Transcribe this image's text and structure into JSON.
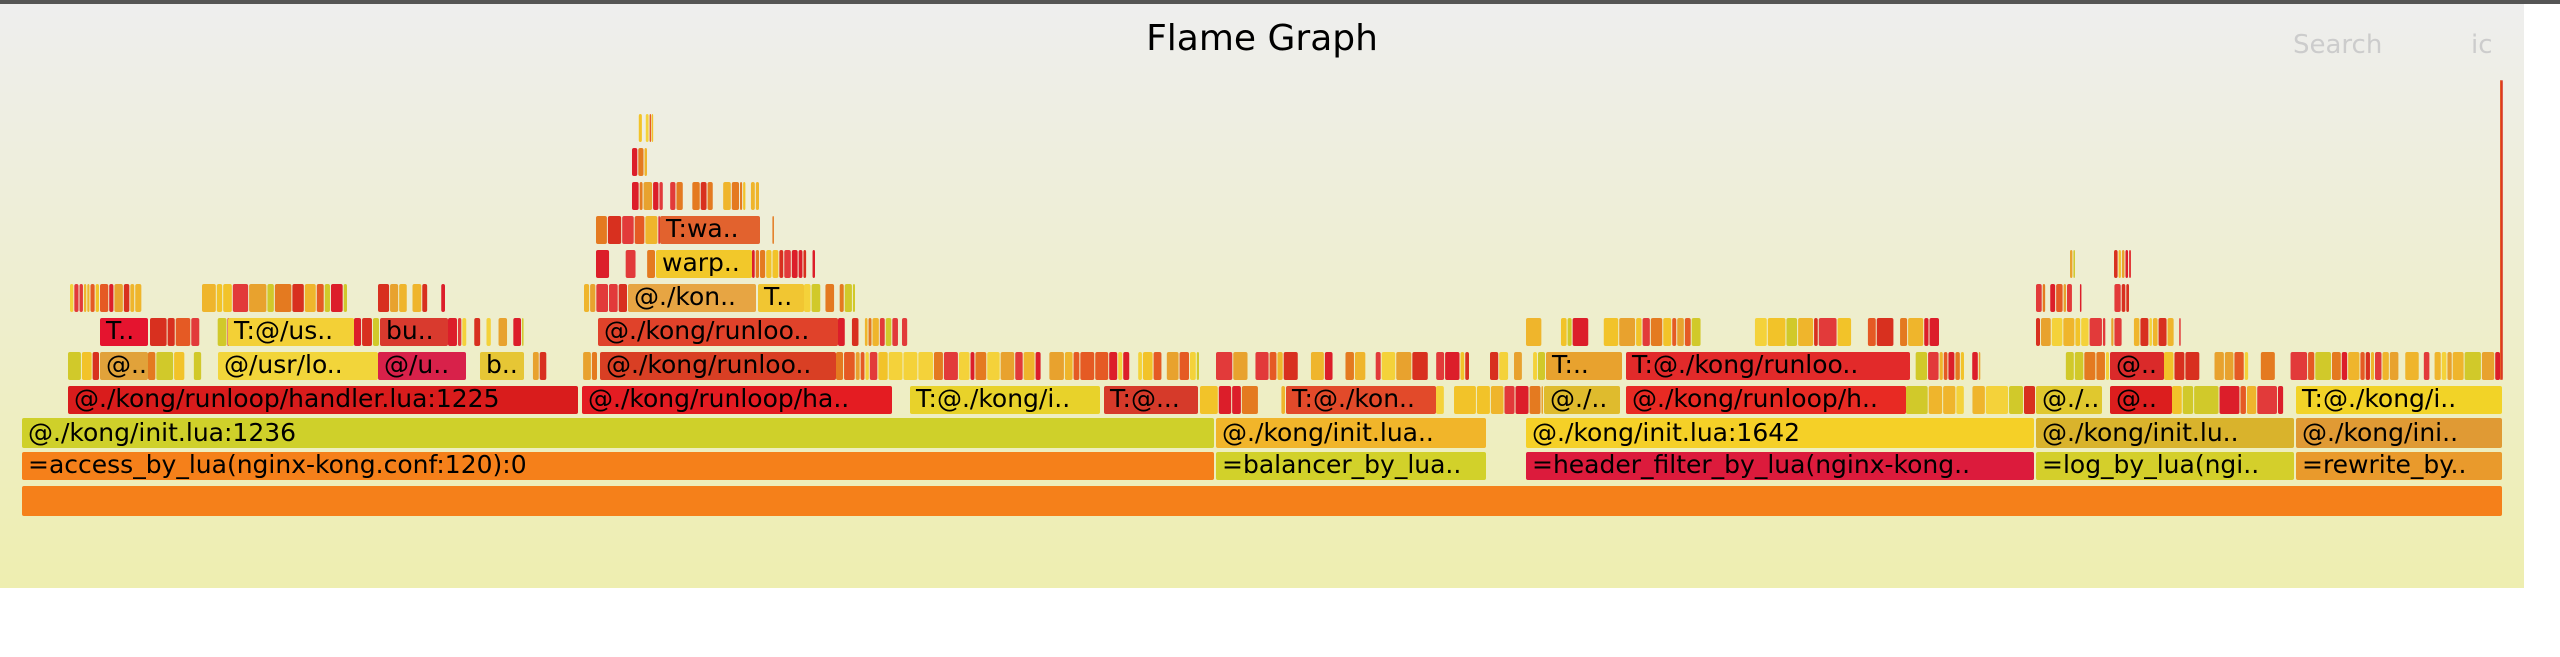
{
  "header": {
    "title": "Flame Graph",
    "search_label": "Search",
    "ic_label": "ic"
  },
  "colors": {
    "background_top": "#eeeeee",
    "background_bottom": "#eeeeb0",
    "root": "#f57f18",
    "orange": "#f5801a",
    "yellow_green": "#d2d12a",
    "red": "#d61f1f",
    "yellow": "#f2c329"
  },
  "frames": [
    {
      "label": "",
      "color": "#f5801a"
    },
    {
      "label": "=access_by_lua(nginx-kong.conf:120):0",
      "color": "#f5801a"
    },
    {
      "label": "=balancer_by_lua..",
      "color": "#d2d12a"
    },
    {
      "label": "=header_filter_by_lua(nginx-kong..",
      "color": "#dc1b3c"
    },
    {
      "label": "=log_by_lua(ngi..",
      "color": "#d4cf2b"
    },
    {
      "label": "=rewrite_by..",
      "color": "#e99a2c"
    },
    {
      "label": "@./kong/init.lua:1236",
      "color": "#cfd02a"
    },
    {
      "label": "@./kong/init.lua..",
      "color": "#f1b52a"
    },
    {
      "label": "@./kong/init.lua:1642",
      "color": "#f5d027"
    },
    {
      "label": "@./kong/init.lu..",
      "color": "#d9b32c"
    },
    {
      "label": "@./kong/ini..",
      "color": "#e09a34"
    },
    {
      "label": "@./kong/runloop/handler.lua:1225",
      "color": "#d91c1c"
    },
    {
      "label": "@./kong/runloop/ha..",
      "color": "#e41c22"
    },
    {
      "label": "T:@./kong/i..",
      "color": "#e8d22a"
    },
    {
      "label": "T:@...",
      "color": "#d63a2a"
    },
    {
      "label": "T:@./kon..",
      "color": "#e24a2a"
    },
    {
      "label": "@./..",
      "color": "#dfbb2d"
    },
    {
      "label": "@./kong/runloop/h..",
      "color": "#e82a23"
    },
    {
      "label": "@./..",
      "color": "#e0c82e"
    },
    {
      "label": "@..",
      "color": "#dc1e1e"
    },
    {
      "label": "T:@./kong/i..",
      "color": "#f2d327"
    },
    {
      "label": "@..",
      "color": "#e1a23a"
    },
    {
      "label": "@/usr/lo..",
      "color": "#f2d53a"
    },
    {
      "label": "@/u..",
      "color": "#d8214a"
    },
    {
      "label": "b..",
      "color": "#e6c635"
    },
    {
      "label": "@./kong/runloo..",
      "color": "#d93f24"
    },
    {
      "label": "T:..",
      "color": "#e8a22e"
    },
    {
      "label": "T:@./kong/runloo..",
      "color": "#e22a2a"
    },
    {
      "label": "@..",
      "color": "#da2a2a"
    },
    {
      "label": "T..",
      "color": "#e5142f"
    },
    {
      "label": "T:@/us..",
      "color": "#f3d036"
    },
    {
      "label": "bu..",
      "color": "#d93a2e"
    },
    {
      "label": "@./kong/runloo..",
      "color": "#e0422a"
    },
    {
      "label": "@./kon..",
      "color": "#e7a543"
    },
    {
      "label": "T..",
      "color": "#f1c632"
    },
    {
      "label": "warp..",
      "color": "#f2c82a"
    },
    {
      "label": "T:wa..",
      "color": "#e2622e"
    }
  ]
}
